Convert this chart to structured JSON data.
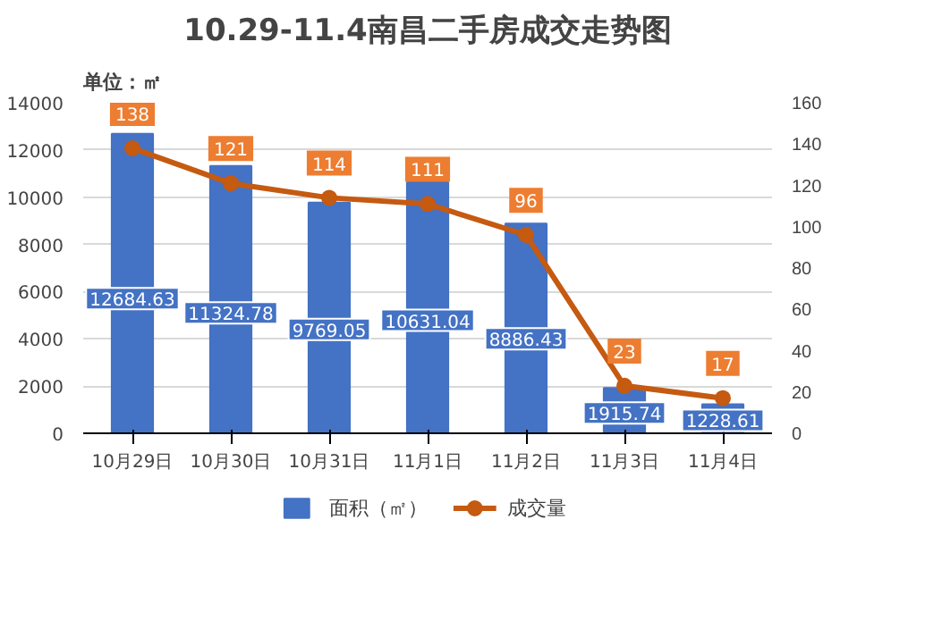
{
  "chart_data": {
    "type": "bar",
    "title": "10.29-11.4南昌二手房成交走势图",
    "ylabel": "单位：㎡",
    "categories": [
      "10月29日",
      "10月30日",
      "10月31日",
      "11月1日",
      "11月2日",
      "11月3日",
      "11月4日"
    ],
    "series": [
      {
        "name": "面积（㎡）",
        "color": "#4472c4",
        "values": [
          12684.63,
          11324.78,
          9769.05,
          10631.04,
          8886.43,
          1915.74,
          1228.61
        ]
      },
      {
        "name": "成交量",
        "type": "line",
        "axis": "y2",
        "color": "#c55a11",
        "marker": "circle",
        "values": [
          138,
          121,
          114,
          111,
          96,
          23,
          17
        ]
      }
    ],
    "ylim": [
      0,
      14000
    ],
    "yticks": [
      0,
      2000,
      4000,
      6000,
      8000,
      10000,
      12000,
      14000
    ],
    "y2lim": [
      0,
      160
    ],
    "y2ticks": [
      0,
      20,
      40,
      60,
      80,
      100,
      120,
      140,
      160
    ],
    "grid": "y",
    "legend": "bottom",
    "data_labels": true
  }
}
